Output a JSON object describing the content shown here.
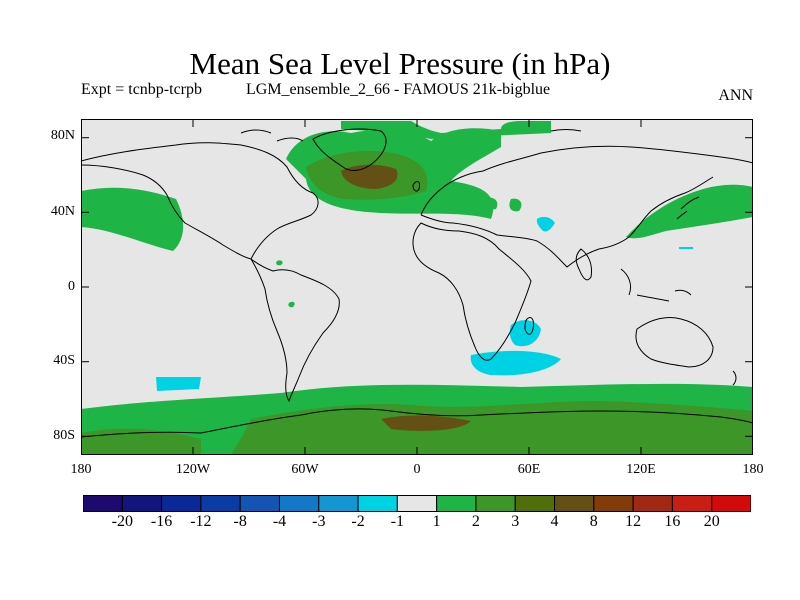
{
  "title": "Mean Sea Level Pressure (in hPa)",
  "subtitle_left": "Expt = tcnbp-tcrpb",
  "subtitle_mid": "LGM_ensemble_2_66 - FAMOUS 21k-bigblue",
  "subtitle_right": "ANN",
  "lat_axis": [
    {
      "label": "80N",
      "value": 80
    },
    {
      "label": "40N",
      "value": 40
    },
    {
      "label": "0",
      "value": 0
    },
    {
      "label": "40S",
      "value": -40
    },
    {
      "label": "80S",
      "value": -80
    }
  ],
  "lon_axis": [
    {
      "label": "180",
      "value": -180
    },
    {
      "label": "120W",
      "value": -120
    },
    {
      "label": "60W",
      "value": -60
    },
    {
      "label": "0",
      "value": 0
    },
    {
      "label": "60E",
      "value": 60
    },
    {
      "label": "120E",
      "value": 120
    },
    {
      "label": "180",
      "value": 180
    }
  ],
  "colorbar": {
    "colors": [
      "#1e0a6e",
      "#14147d",
      "#0a2896",
      "#0a3ca5",
      "#1455b4",
      "#1478c8",
      "#1496d2",
      "#00d2e6",
      "#e6e6e6",
      "#1eb446",
      "#3c9628",
      "#506e0a",
      "#645014",
      "#823c0a",
      "#a02814",
      "#c81e14",
      "#d20a0a"
    ],
    "labels": [
      "-20",
      "-16",
      "-12",
      "-8",
      "-4",
      "-3",
      "-2",
      "-1",
      "1",
      "2",
      "3",
      "4",
      "8",
      "12",
      "16",
      "20"
    ]
  },
  "palette": {
    "neutral": "#e6e6e6",
    "pos1": "#1eb446",
    "pos2": "#3c9628",
    "pos3": "#645014",
    "neg1": "#00d2e6"
  }
}
